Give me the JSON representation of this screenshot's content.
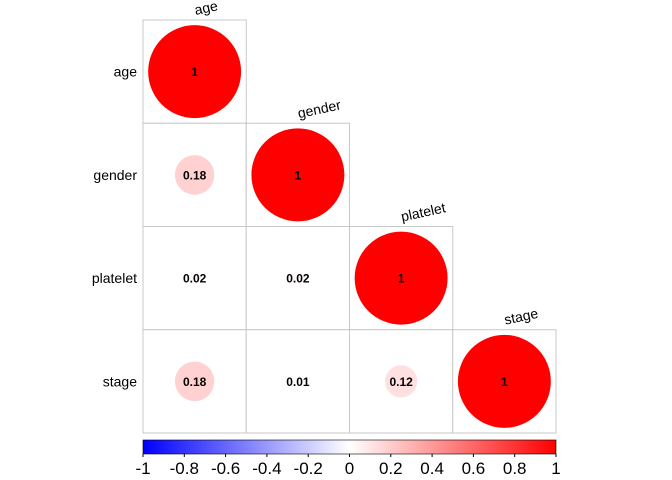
{
  "chart_data": {
    "type": "heatmap",
    "subtype": "lower-triangle correlation matrix (circles)",
    "variables": [
      "age",
      "gender",
      "platelet",
      "stage"
    ],
    "matrix": [
      [
        1,
        null,
        null,
        null
      ],
      [
        0.18,
        1,
        null,
        null
      ],
      [
        0.02,
        0.02,
        1,
        null
      ],
      [
        0.18,
        0.01,
        0.12,
        1
      ]
    ],
    "value_labels": [
      [
        "1",
        "",
        "",
        ""
      ],
      [
        "0.18",
        "1",
        "",
        ""
      ],
      [
        "0.02",
        "0.02",
        "1",
        ""
      ],
      [
        "0.18",
        "0.01",
        "0.12",
        "1"
      ]
    ],
    "colorbar": {
      "range": [
        -1,
        1
      ],
      "ticks": [
        "-1",
        "-0.8",
        "-0.6",
        "-0.4",
        "-0.2",
        "0",
        "0.2",
        "0.4",
        "0.6",
        "0.8",
        "1"
      ],
      "colors": {
        "negative": "#0000ff",
        "zero": "#ffffff",
        "positive": "#ff0000"
      }
    },
    "grid": true
  }
}
